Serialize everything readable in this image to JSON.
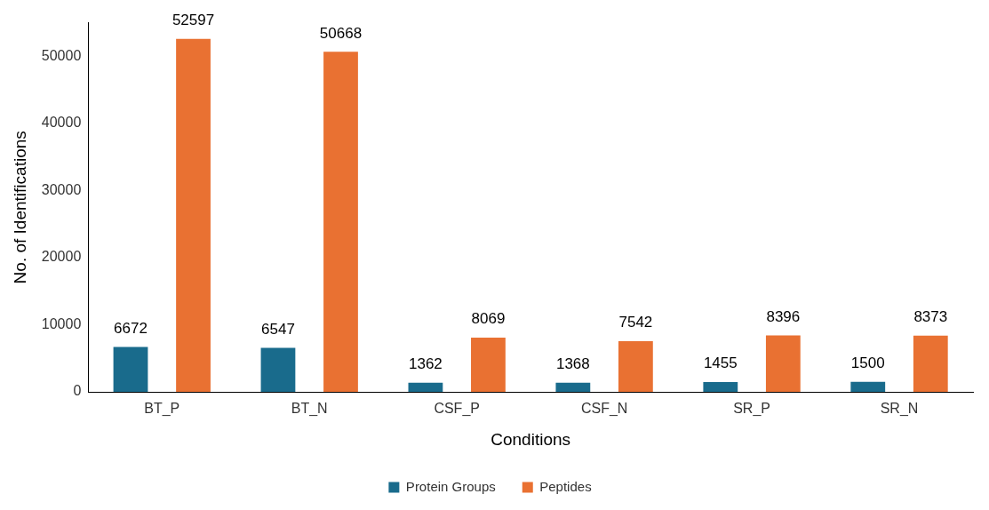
{
  "chart_data": {
    "type": "bar",
    "xlabel": "Conditions",
    "ylabel": "No. of Identifications",
    "categories": [
      "BT_P",
      "BT_N",
      "CSF_P",
      "CSF_N",
      "SR_P",
      "SR_N"
    ],
    "series": [
      {
        "name": "Protein Groups",
        "color": "#196b8c",
        "values": [
          6672,
          6547,
          1362,
          1368,
          1455,
          1500
        ]
      },
      {
        "name": "Peptides",
        "color": "#e97132",
        "values": [
          52597,
          50668,
          8069,
          7542,
          8396,
          8373
        ]
      }
    ],
    "ylim": [
      0,
      55000
    ],
    "yticks": [
      0,
      10000,
      20000,
      30000,
      40000,
      50000
    ],
    "grid": false,
    "legend": "bottom",
    "data_labels": true
  }
}
